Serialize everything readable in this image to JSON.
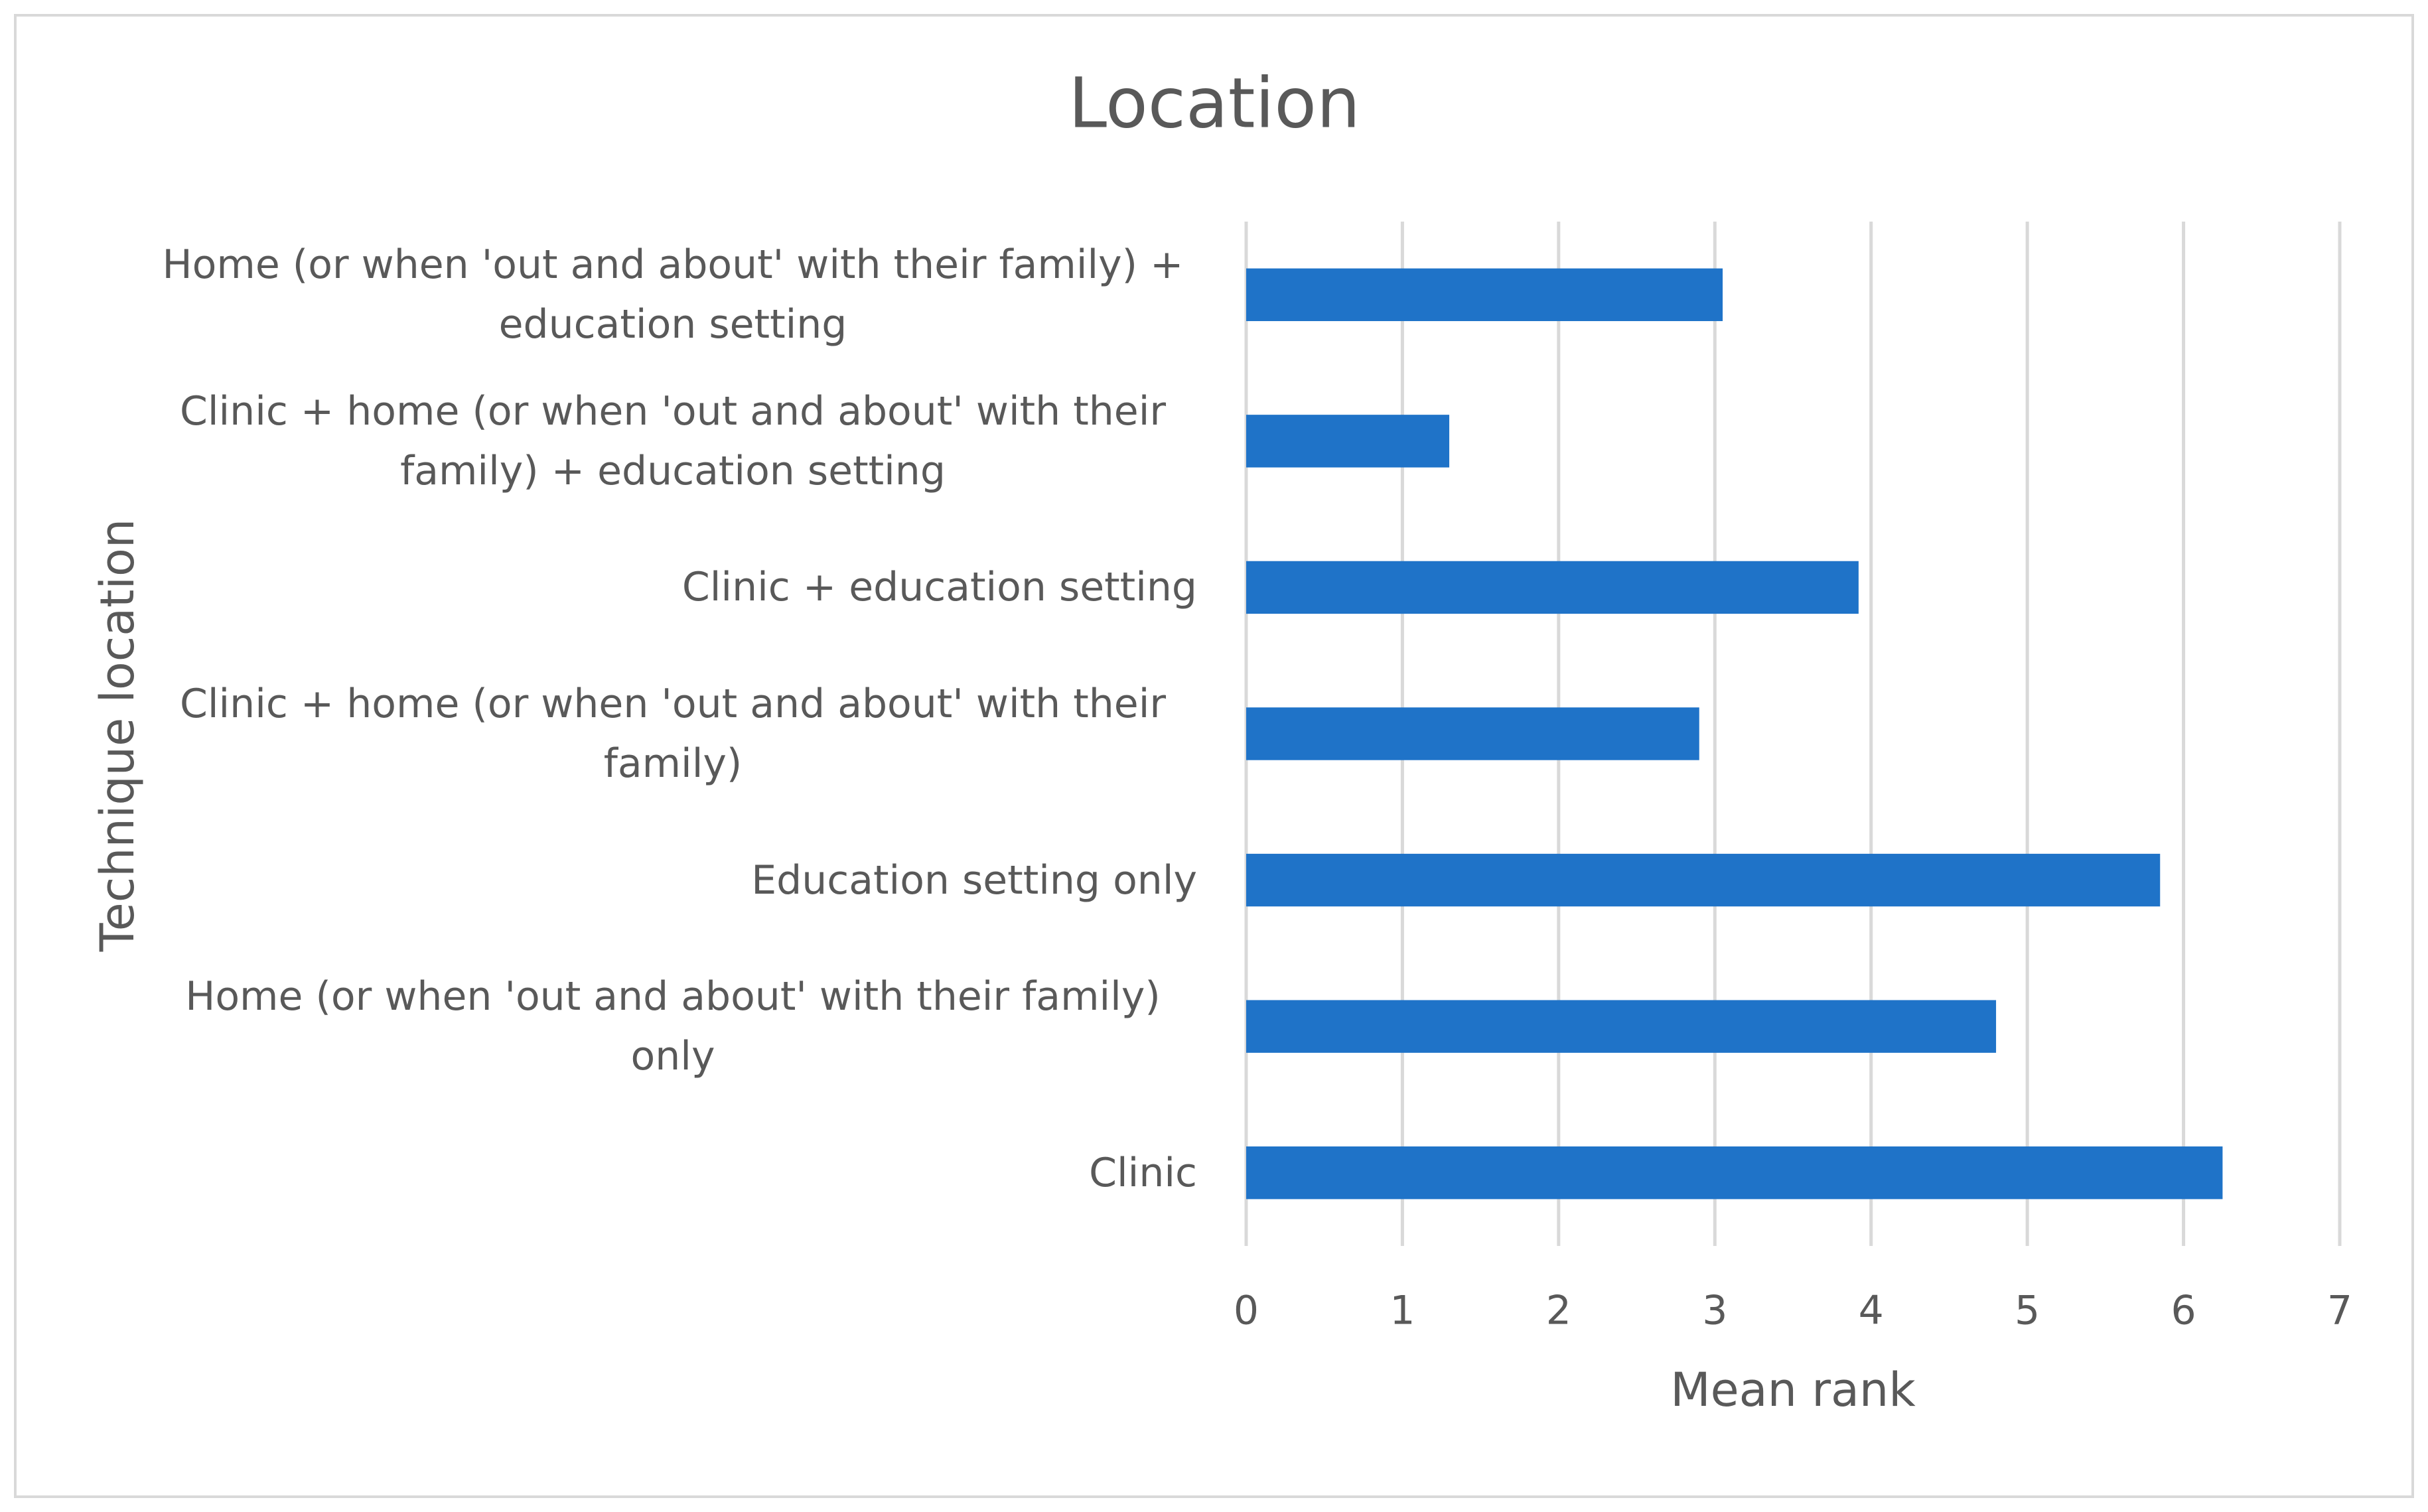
{
  "chart_data": {
    "type": "bar",
    "orientation": "horizontal",
    "title": "Location",
    "x_label": "Mean rank",
    "y_label": "Technique location",
    "categories": [
      "Clinic",
      "Home (or when 'out and about' with their family) only",
      "Education setting only",
      "Clinic + home (or when 'out and about' with their family)",
      "Clinic + education setting",
      "Clinic + home (or when 'out and about' with their family) + education setting",
      "Home (or when 'out and about' with their family) + education setting"
    ],
    "values": [
      6.25,
      4.8,
      5.85,
      2.9,
      3.92,
      1.3,
      3.05
    ],
    "color": "#1f73c8",
    "xlim": [
      0,
      7
    ],
    "xticks": [
      0,
      1,
      2,
      3,
      4,
      5,
      6,
      7
    ],
    "grid": true
  }
}
